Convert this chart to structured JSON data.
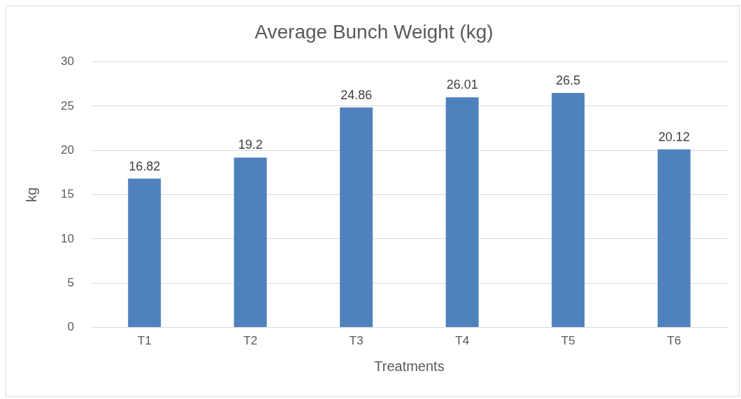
{
  "chart_data": {
    "type": "bar",
    "title": "Average Bunch Weight (kg)",
    "xlabel": "Treatments",
    "ylabel": "kg",
    "categories": [
      "T1",
      "T2",
      "T3",
      "T4",
      "T5",
      "T6"
    ],
    "values": [
      16.82,
      19.2,
      24.86,
      26.01,
      26.5,
      20.12
    ],
    "color": "#4f81bd",
    "ylim": [
      0,
      30
    ],
    "yticks": [
      0,
      5,
      10,
      15,
      20,
      25,
      30
    ],
    "grid": "y",
    "data_labels": true
  }
}
